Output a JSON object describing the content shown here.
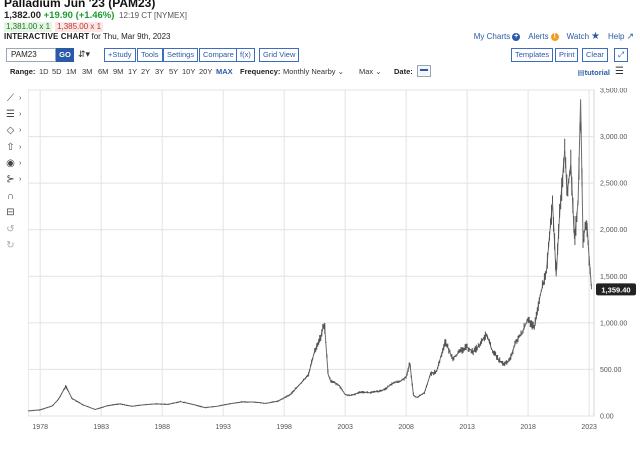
{
  "header": {
    "title": "Palladium Jun '23 (PAM23)",
    "price": "1,382.00",
    "change": "+19.90 (+1.46%)",
    "time": "12:19 CT [NYMEX]",
    "bid": "1,381.00 x 1",
    "ask": "1,385.00 x 1",
    "chart_label": "INTERACTIVE CHART",
    "chart_for": "for Thu, Mar 9th, 2023"
  },
  "top_links": {
    "my_charts": "My Charts",
    "alerts": "Alerts",
    "watch": "Watch",
    "help": "Help"
  },
  "toolbar": {
    "symbol": "PAM23",
    "go": "GO",
    "study": "+Study",
    "tools": "Tools",
    "settings": "Settings",
    "compare": "Compare",
    "fx": "f(x)",
    "grid_view": "Grid View",
    "templates": "Templates",
    "print": "Print",
    "clear": "Clear"
  },
  "range_bar": {
    "range_label": "Range:",
    "ranges": [
      "1D",
      "5D",
      "1M",
      "3M",
      "6M",
      "9M",
      "1Y",
      "2Y",
      "3Y",
      "5Y",
      "10Y",
      "20Y",
      "MAX"
    ],
    "active_range": "MAX",
    "frequency_label": "Frequency:",
    "frequency_value": "Monthly Nearby",
    "type_value": "Max",
    "date_label": "Date:",
    "tutorial": "tutorial"
  },
  "icons": [
    "draw-line-icon",
    "fibonacci-icon",
    "shape-icon",
    "arrow-icon",
    "annotation-icon",
    "pattern-icon",
    "magnet-icon",
    "lock-icon",
    "undo-icon",
    "redo-icon"
  ],
  "colors": {
    "accent": "#2b5aa8",
    "up": "#1a9b2e",
    "down": "#c0392b",
    "series": "#555555",
    "last_price_bg": "#222222"
  },
  "chart_data": {
    "type": "line",
    "title": "",
    "xlabel": "",
    "ylabel": "",
    "x_ticks": [
      "1978",
      "1983",
      "1988",
      "1993",
      "1998",
      "2003",
      "2008",
      "2013",
      "2018",
      "2023"
    ],
    "y_ticks": [
      "0.00",
      "500.00",
      "1,000.00",
      "1,500.00",
      "2,000.00",
      "2,500.00",
      "3,000.00",
      "3,500.00"
    ],
    "ylim": [
      0,
      3500
    ],
    "xlim": [
      1977.0,
      2023.4
    ],
    "grid": true,
    "last_price_label": "1,359.40",
    "last_price": 1359.4,
    "series": [
      {
        "x": [
          1977.0,
          1978.0,
          1979.0,
          1979.5,
          1980.1,
          1980.6,
          1981.5,
          1982.5,
          1983.5,
          1984.5,
          1985.5,
          1986.5,
          1987.5,
          1988.5,
          1989.5,
          1990.5,
          1991.5,
          1992.5,
          1993.5,
          1994.5,
          1995.5,
          1996.5,
          1997.5,
          1998.5,
          1999.5,
          2000.0,
          2000.5,
          2001.0,
          2001.3,
          2001.6,
          2001.8,
          2002.5,
          2003.0,
          2003.5,
          2004.3,
          2005.0,
          2006.0,
          2006.5,
          2007.0,
          2007.5,
          2008.0,
          2008.3,
          2008.6,
          2008.9,
          2009.5,
          2010.0,
          2010.5,
          2011.2,
          2011.8,
          2012.5,
          2013.0,
          2013.5,
          2014.0,
          2014.6,
          2015.0,
          2015.5,
          2016.0,
          2016.5,
          2017.0,
          2017.5,
          2018.0,
          2018.5,
          2019.0,
          2019.5,
          2020.0,
          2020.3,
          2020.6,
          2021.0,
          2021.2,
          2021.5,
          2021.8,
          2022.1,
          2022.3,
          2022.5,
          2022.8,
          2023.0,
          2023.2
        ],
        "y": [
          55,
          65,
          110,
          180,
          320,
          190,
          120,
          70,
          110,
          130,
          105,
          120,
          130,
          125,
          155,
          125,
          90,
          105,
          130,
          150,
          150,
          135,
          160,
          230,
          370,
          450,
          700,
          850,
          1000,
          450,
          380,
          330,
          230,
          220,
          260,
          250,
          270,
          310,
          360,
          370,
          420,
          570,
          220,
          200,
          250,
          450,
          480,
          800,
          620,
          700,
          740,
          690,
          760,
          880,
          720,
          620,
          550,
          600,
          800,
          890,
          1050,
          940,
          1300,
          1550,
          2300,
          1500,
          2200,
          2850,
          2400,
          2700,
          1900,
          2300,
          3400,
          1900,
          2100,
          1700,
          1360
        ]
      }
    ]
  }
}
